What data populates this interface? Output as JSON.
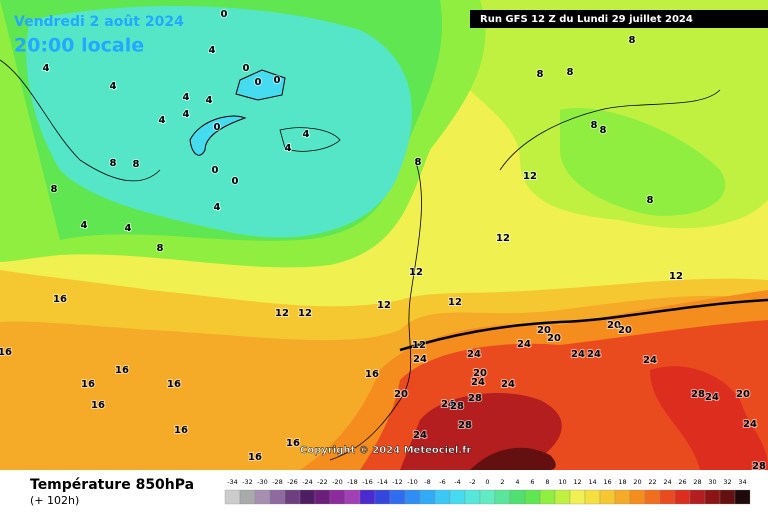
{
  "header": {
    "date": "Vendredi 2 août 2024",
    "time": "20:00 locale"
  },
  "run": "Run GFS 12 Z du Lundi 29 juillet 2024",
  "copyright": "Copyright © 2024 Meteociel.fr",
  "legend": {
    "title": "Température 850hPa",
    "lead": "(+ 102h)",
    "values": [
      -34,
      -32,
      -30,
      -28,
      -26,
      -24,
      -22,
      -20,
      -18,
      -16,
      -14,
      -12,
      -10,
      -8,
      -6,
      -4,
      -2,
      0,
      2,
      4,
      6,
      8,
      10,
      12,
      14,
      16,
      18,
      20,
      22,
      24,
      26,
      28,
      30,
      32,
      34
    ],
    "colors": [
      "#cccccc",
      "#aaaaaa",
      "#a68fb0",
      "#8e6a9e",
      "#6e3f80",
      "#4f1d63",
      "#6b1e7a",
      "#8c2b9c",
      "#a13fb5",
      "#4b2bd0",
      "#3347e0",
      "#2f6cf0",
      "#2f8ef5",
      "#33aaf5",
      "#3cc8f5",
      "#46dcf0",
      "#55e6dc",
      "#60ecc0",
      "#5ae69a",
      "#50e070",
      "#5fe650",
      "#90ee40",
      "#c0f040",
      "#f0f050",
      "#f5e040",
      "#f5c832",
      "#f5aa28",
      "#f58c1e",
      "#f06e1e",
      "#ea4b1e",
      "#dc2d1e",
      "#b41e1e",
      "#8c1414",
      "#641010",
      "#1e0a0a"
    ]
  },
  "contour_labels": [
    0,
    4,
    0,
    0,
    0,
    4,
    4,
    4,
    4,
    4,
    4,
    0,
    4,
    4,
    8,
    8,
    8,
    0,
    0,
    4,
    4,
    4,
    8,
    8,
    8,
    8,
    8,
    8,
    8,
    12,
    8,
    12,
    12,
    12,
    12,
    12,
    12,
    16,
    16,
    16,
    16,
    16,
    16,
    16,
    16,
    16,
    16,
    12,
    20,
    20,
    20,
    20,
    12,
    24,
    24,
    24,
    24,
    24,
    20,
    24,
    24,
    24,
    20,
    24,
    28,
    28,
    28,
    24,
    20,
    24,
    28,
    24,
    28
  ]
}
